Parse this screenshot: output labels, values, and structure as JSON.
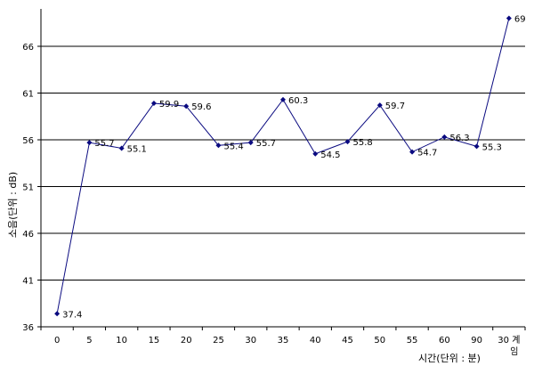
{
  "chart_data": {
    "type": "line",
    "title": "",
    "xlabel": "시간(단위 : 분)",
    "ylabel": "소음(단위 : dB)",
    "categories": [
      "0",
      "5",
      "10",
      "15",
      "20",
      "25",
      "30",
      "35",
      "40",
      "45",
      "50",
      "55",
      "60",
      "90",
      "30 계임"
    ],
    "series": [
      {
        "values": [
          37.4,
          55.7,
          55.1,
          59.9,
          59.6,
          55.4,
          55.7,
          60.3,
          54.5,
          55.8,
          59.7,
          54.7,
          56.3,
          55.3,
          69.0
        ],
        "data_labels": [
          "37.4",
          "55.7",
          "55.1",
          "59.9",
          "59.6",
          "55.4",
          "55.7",
          "60.3",
          "54.5",
          "55.8",
          "59.7",
          "54.7",
          "56.3",
          "55.3",
          "69"
        ]
      }
    ],
    "y_ticks": [
      "36",
      "41",
      "46",
      "51",
      "56",
      "61",
      "66"
    ],
    "ylim": [
      36,
      70
    ],
    "grid": true,
    "legend": "none",
    "colors": {
      "line": "#0a0a80",
      "marker": "#0a0a80",
      "grid": "#000000",
      "axis": "#000000"
    }
  }
}
